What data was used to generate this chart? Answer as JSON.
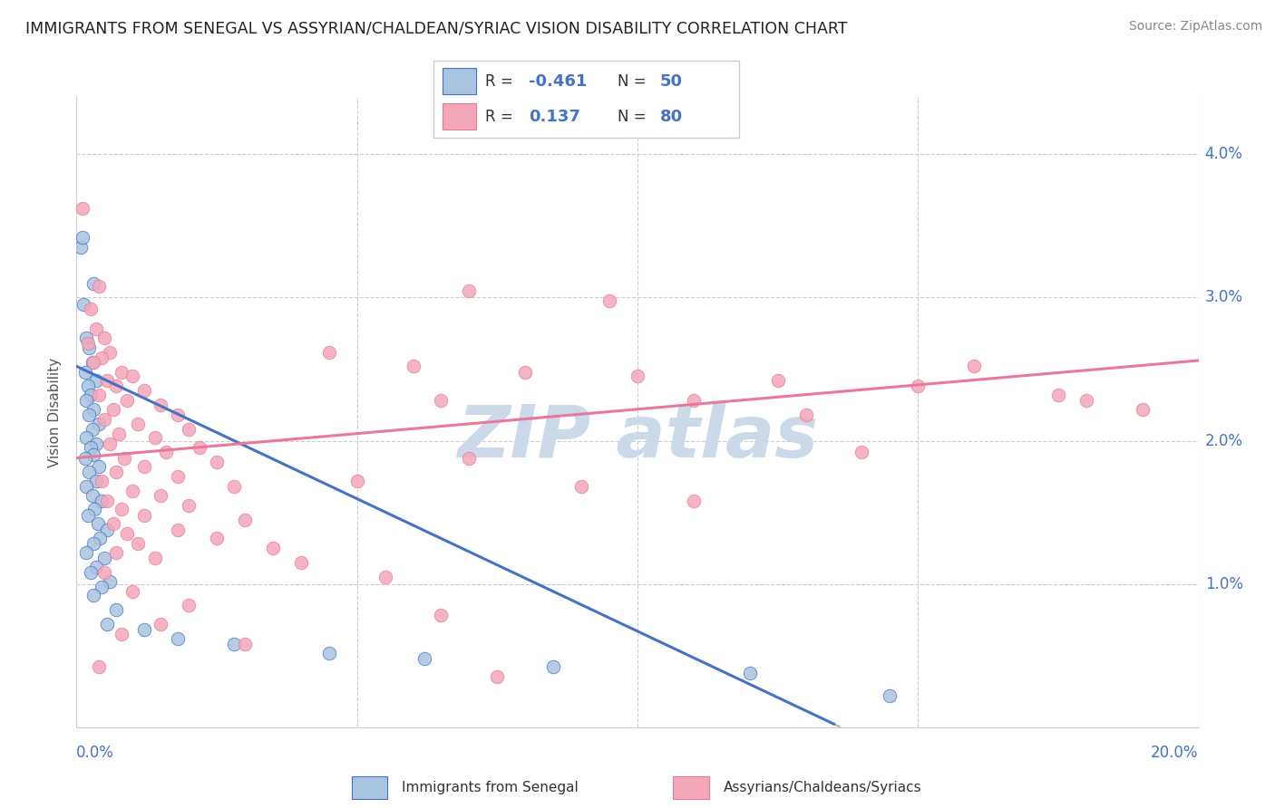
{
  "title": "IMMIGRANTS FROM SENEGAL VS ASSYRIAN/CHALDEAN/SYRIAC VISION DISABILITY CORRELATION CHART",
  "source": "Source: ZipAtlas.com",
  "ylabel": "Vision Disability",
  "xmin": 0.0,
  "xmax": 20.0,
  "ymin": 0.0,
  "ymax": 4.4,
  "color_blue": "#a8c4e0",
  "color_pink": "#f4a7b9",
  "trendline_blue": "#4472c4",
  "trendline_pink": "#e8799a",
  "watermark_color": "#ccd9e8",
  "blue_intercept": 2.52,
  "blue_slope": -0.185,
  "pink_intercept": 1.88,
  "pink_slope": 0.034,
  "blue_points": [
    [
      0.08,
      3.35
    ],
    [
      0.1,
      3.42
    ],
    [
      0.3,
      3.1
    ],
    [
      0.12,
      2.95
    ],
    [
      0.18,
      2.72
    ],
    [
      0.22,
      2.65
    ],
    [
      0.28,
      2.55
    ],
    [
      0.15,
      2.48
    ],
    [
      0.35,
      2.42
    ],
    [
      0.2,
      2.38
    ],
    [
      0.25,
      2.32
    ],
    [
      0.18,
      2.28
    ],
    [
      0.3,
      2.22
    ],
    [
      0.22,
      2.18
    ],
    [
      0.4,
      2.12
    ],
    [
      0.28,
      2.08
    ],
    [
      0.18,
      2.02
    ],
    [
      0.35,
      1.98
    ],
    [
      0.25,
      1.95
    ],
    [
      0.3,
      1.9
    ],
    [
      0.15,
      1.88
    ],
    [
      0.4,
      1.82
    ],
    [
      0.22,
      1.78
    ],
    [
      0.35,
      1.72
    ],
    [
      0.18,
      1.68
    ],
    [
      0.28,
      1.62
    ],
    [
      0.45,
      1.58
    ],
    [
      0.32,
      1.52
    ],
    [
      0.2,
      1.48
    ],
    [
      0.38,
      1.42
    ],
    [
      0.55,
      1.38
    ],
    [
      0.42,
      1.32
    ],
    [
      0.3,
      1.28
    ],
    [
      0.18,
      1.22
    ],
    [
      0.5,
      1.18
    ],
    [
      0.35,
      1.12
    ],
    [
      0.25,
      1.08
    ],
    [
      0.6,
      1.02
    ],
    [
      0.45,
      0.98
    ],
    [
      0.3,
      0.92
    ],
    [
      0.7,
      0.82
    ],
    [
      0.55,
      0.72
    ],
    [
      1.2,
      0.68
    ],
    [
      1.8,
      0.62
    ],
    [
      2.8,
      0.58
    ],
    [
      4.5,
      0.52
    ],
    [
      6.2,
      0.48
    ],
    [
      8.5,
      0.42
    ],
    [
      12.0,
      0.38
    ],
    [
      14.5,
      0.22
    ]
  ],
  "pink_points": [
    [
      0.1,
      3.62
    ],
    [
      0.4,
      3.08
    ],
    [
      0.25,
      2.92
    ],
    [
      0.35,
      2.78
    ],
    [
      0.5,
      2.72
    ],
    [
      0.2,
      2.68
    ],
    [
      0.6,
      2.62
    ],
    [
      0.45,
      2.58
    ],
    [
      0.3,
      2.55
    ],
    [
      0.8,
      2.48
    ],
    [
      1.0,
      2.45
    ],
    [
      0.55,
      2.42
    ],
    [
      0.7,
      2.38
    ],
    [
      1.2,
      2.35
    ],
    [
      0.4,
      2.32
    ],
    [
      0.9,
      2.28
    ],
    [
      1.5,
      2.25
    ],
    [
      0.65,
      2.22
    ],
    [
      1.8,
      2.18
    ],
    [
      0.5,
      2.15
    ],
    [
      1.1,
      2.12
    ],
    [
      2.0,
      2.08
    ],
    [
      0.75,
      2.05
    ],
    [
      1.4,
      2.02
    ],
    [
      0.6,
      1.98
    ],
    [
      2.2,
      1.95
    ],
    [
      1.6,
      1.92
    ],
    [
      0.85,
      1.88
    ],
    [
      2.5,
      1.85
    ],
    [
      1.2,
      1.82
    ],
    [
      0.7,
      1.78
    ],
    [
      1.8,
      1.75
    ],
    [
      0.45,
      1.72
    ],
    [
      2.8,
      1.68
    ],
    [
      1.0,
      1.65
    ],
    [
      1.5,
      1.62
    ],
    [
      0.55,
      1.58
    ],
    [
      2.0,
      1.55
    ],
    [
      0.8,
      1.52
    ],
    [
      1.2,
      1.48
    ],
    [
      3.0,
      1.45
    ],
    [
      0.65,
      1.42
    ],
    [
      1.8,
      1.38
    ],
    [
      0.9,
      1.35
    ],
    [
      2.5,
      1.32
    ],
    [
      1.1,
      1.28
    ],
    [
      3.5,
      1.25
    ],
    [
      0.7,
      1.22
    ],
    [
      1.4,
      1.18
    ],
    [
      4.0,
      1.15
    ],
    [
      0.5,
      1.08
    ],
    [
      5.5,
      1.05
    ],
    [
      1.0,
      0.95
    ],
    [
      2.0,
      0.85
    ],
    [
      6.5,
      0.78
    ],
    [
      1.5,
      0.72
    ],
    [
      0.8,
      0.65
    ],
    [
      3.0,
      0.58
    ],
    [
      0.4,
      0.42
    ],
    [
      7.5,
      0.35
    ],
    [
      6.0,
      2.52
    ],
    [
      8.0,
      2.48
    ],
    [
      10.0,
      2.45
    ],
    [
      12.5,
      2.42
    ],
    [
      7.0,
      3.05
    ],
    [
      9.5,
      2.98
    ],
    [
      15.0,
      2.38
    ],
    [
      11.0,
      2.28
    ],
    [
      13.0,
      2.18
    ],
    [
      17.5,
      2.32
    ],
    [
      5.0,
      1.72
    ],
    [
      7.0,
      1.88
    ],
    [
      9.0,
      1.68
    ],
    [
      11.0,
      1.58
    ],
    [
      16.0,
      2.52
    ],
    [
      4.5,
      2.62
    ],
    [
      6.5,
      2.28
    ],
    [
      14.0,
      1.92
    ],
    [
      18.0,
      2.28
    ],
    [
      19.0,
      2.22
    ]
  ]
}
